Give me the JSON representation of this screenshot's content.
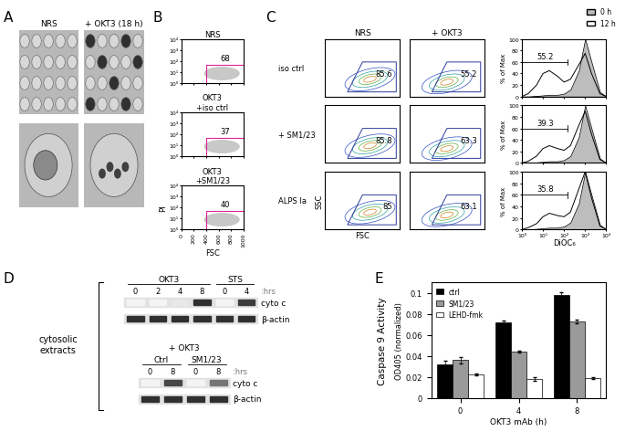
{
  "panel_labels": [
    "A",
    "B",
    "C",
    "D",
    "E"
  ],
  "A": {
    "columns": [
      "NRS",
      "+ OKT3 (18 h)"
    ]
  },
  "B": {
    "rows": [
      {
        "label": "NRS",
        "gate_pct": 68
      },
      {
        "label": "OKT3\n+iso ctrl",
        "gate_pct": 37
      },
      {
        "label": "OKT3\n+SM1/23",
        "gate_pct": 40
      }
    ],
    "x_label": "FSC",
    "y_label": "PI",
    "xlim": [
      0,
      1000
    ],
    "xticks": [
      0,
      200,
      400,
      600,
      800,
      1000
    ],
    "log": "y",
    "ylim": [
      1,
      10000
    ],
    "yticks": [
      {
        "value": 1,
        "label": "10⁰"
      },
      {
        "value": 10,
        "label": "10¹"
      },
      {
        "value": 100,
        "label": "10²"
      },
      {
        "value": 1000,
        "label": "10³"
      },
      {
        "value": 10000,
        "label": "10⁴"
      }
    ],
    "gate_x": [
      400,
      1000
    ],
    "gate_y": [
      1,
      50
    ],
    "gate_color": "#e0209a"
  },
  "C": {
    "columns": [
      "NRS",
      "+ OKT3"
    ],
    "rows": [
      {
        "label": "iso ctrl",
        "gate_pct": [
          85.6,
          55.2
        ],
        "hist_pct": 55.2,
        "hist_12h": [
          0,
          5,
          20,
          40,
          45,
          35,
          25,
          30,
          55,
          75,
          40,
          5,
          0
        ]
      },
      {
        "label": "+ SM1/23",
        "gate_pct": [
          85.8,
          63.3
        ],
        "hist_pct": 39.3,
        "hist_12h": [
          0,
          3,
          12,
          25,
          30,
          25,
          22,
          30,
          65,
          90,
          50,
          6,
          0
        ]
      },
      {
        "label": "ALPS Ia",
        "gate_pct": [
          85,
          63.1
        ],
        "hist_pct": 35.8,
        "hist_12h": [
          0,
          3,
          10,
          22,
          28,
          24,
          22,
          30,
          70,
          100,
          55,
          6,
          0
        ]
      }
    ],
    "x_label": "FSC",
    "y_label": "SSC",
    "gate_color": "#2b3a9a",
    "tick_labels": false,
    "hist": {
      "x_label": "DiOC₆",
      "y_label": "% of Max",
      "log": "x",
      "xlim": [
        1,
        10000
      ],
      "xticks": [
        {
          "value": 1,
          "label": "10⁰"
        },
        {
          "value": 10,
          "label": "10¹"
        },
        {
          "value": 100,
          "label": "10²"
        },
        {
          "value": 1000,
          "label": "10³"
        },
        {
          "value": 10000,
          "label": "10⁴"
        }
      ],
      "ylim": [
        0,
        100
      ],
      "yticks": [
        0,
        20,
        40,
        60,
        80,
        100
      ],
      "x": [
        1,
        2,
        5,
        10,
        20,
        50,
        100,
        200,
        500,
        1000,
        2000,
        5000,
        10000
      ],
      "gate_x": [
        1,
        150
      ],
      "series": [
        {
          "name": "0 h",
          "color": "#bdbdbd",
          "values": [
            0,
            0,
            1,
            2,
            3,
            3,
            5,
            12,
            45,
            100,
            60,
            8,
            0
          ]
        },
        {
          "name": "12 h",
          "color": "#ffffff"
        }
      ]
    }
  },
  "D": {
    "side_label": "cytosolic\nextracts",
    "blots": [
      {
        "groups": [
          {
            "label": "OKT3",
            "lanes": [
              0,
              2,
              4,
              8
            ]
          },
          {
            "label": "STS",
            "lanes": [
              0,
              4
            ]
          }
        ],
        "unit": ":hrs",
        "rows": [
          {
            "name": "cyto c",
            "bands": [
              0.05,
              0.05,
              0.1,
              0.9,
              0.05,
              0.85
            ]
          },
          {
            "name": "β-actin",
            "bands": [
              0.9,
              0.9,
              0.9,
              0.9,
              0.9,
              0.9
            ]
          }
        ]
      },
      {
        "header": "+ OKT3",
        "groups": [
          {
            "label": "Ctrl",
            "lanes": [
              0,
              8
            ]
          },
          {
            "label": "SM1/23",
            "lanes": [
              0,
              8
            ]
          }
        ],
        "unit": ":hrs",
        "rows": [
          {
            "name": "cyto c",
            "bands": [
              0.05,
              0.8,
              0.05,
              0.6
            ]
          },
          {
            "name": "β-actin",
            "bands": [
              0.9,
              0.9,
              0.9,
              0.9
            ]
          }
        ]
      }
    ]
  },
  "chart_data": {
    "type": "bar",
    "title": "Caspase 9 Activity",
    "y_label": "OD405 (normalized)",
    "x_label": "OKT3 mAb (h)",
    "categories": [
      "0",
      "4",
      "8"
    ],
    "series": [
      {
        "name": "ctrl",
        "color": "#000000",
        "values": [
          0.032,
          0.072,
          0.098
        ],
        "errors": [
          0.003,
          0.002,
          0.003
        ]
      },
      {
        "name": "SM1/23",
        "color": "#9a9a9a",
        "values": [
          0.036,
          0.044,
          0.073
        ],
        "errors": [
          0.003,
          0.001,
          0.002
        ]
      },
      {
        "name": "LEHD-fmk",
        "color": "#ffffff",
        "values": [
          0.022,
          0.018,
          0.019
        ],
        "errors": [
          0.001,
          0.002,
          0.001
        ]
      }
    ],
    "ylim": [
      0,
      0.11
    ],
    "yticks": [
      0,
      0.02,
      0.04,
      0.06,
      0.08,
      0.1
    ],
    "legend": "upper left",
    "grid": false
  }
}
